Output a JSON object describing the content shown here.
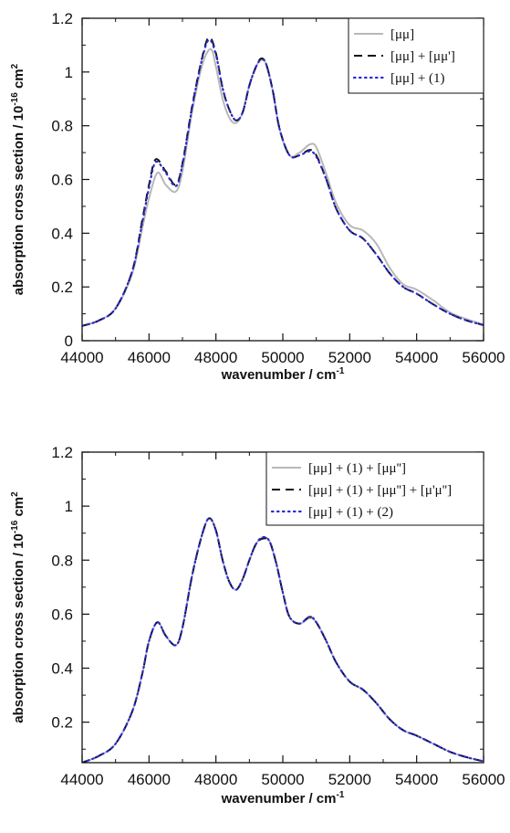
{
  "chart_data": [
    {
      "type": "line",
      "xlabel": "wavenumber / cm",
      "xlabel_sup": "-1",
      "ylabel_main": "absorption cross section / 10",
      "ylabel_sup": "-16",
      "ylabel_unit": " cm",
      "ylabel_unit_sup": "2",
      "xlim": [
        44000,
        56000
      ],
      "ylim": [
        0,
        1.2
      ],
      "xticks": [
        44000,
        46000,
        48000,
        50000,
        52000,
        54000,
        56000
      ],
      "xtick_labels": [
        "44000",
        "46000",
        "48000",
        "50000",
        "52000",
        "54000",
        "56000"
      ],
      "yticks": [
        0,
        0.2,
        0.4,
        0.6,
        0.8,
        1,
        1.2
      ],
      "ytick_labels": [
        "0",
        "0.2",
        "0.4",
        "0.6",
        "0.8",
        "1",
        "1.2"
      ],
      "grid": false,
      "legend_position": "top-right",
      "series": [
        {
          "name": "[μμ]",
          "style": "solid",
          "color": "#b8b8b8",
          "x": [
            44000,
            44500,
            45000,
            45500,
            45800,
            46000,
            46250,
            46500,
            46800,
            47000,
            47300,
            47600,
            47850,
            48000,
            48200,
            48400,
            48600,
            48800,
            49000,
            49200,
            49350,
            49500,
            49700,
            49900,
            50200,
            50500,
            50800,
            51000,
            51300,
            51600,
            52000,
            52400,
            52800,
            53200,
            53600,
            54000,
            54500,
            55000,
            55500,
            56000
          ],
          "y": [
            0.055,
            0.075,
            0.12,
            0.25,
            0.42,
            0.53,
            0.625,
            0.58,
            0.555,
            0.63,
            0.86,
            1.03,
            1.085,
            1.02,
            0.9,
            0.83,
            0.81,
            0.85,
            0.95,
            1.02,
            1.045,
            1.03,
            0.93,
            0.79,
            0.69,
            0.7,
            0.73,
            0.72,
            0.62,
            0.51,
            0.43,
            0.41,
            0.36,
            0.27,
            0.21,
            0.19,
            0.15,
            0.105,
            0.08,
            0.06
          ]
        },
        {
          "name": "[μμ] + [μμ']",
          "style": "dashed",
          "color": "#111111",
          "x": [
            44000,
            44500,
            45000,
            45500,
            45800,
            46000,
            46200,
            46500,
            46800,
            47000,
            47300,
            47600,
            47800,
            48000,
            48200,
            48400,
            48600,
            48800,
            49000,
            49200,
            49350,
            49500,
            49700,
            49900,
            50200,
            50500,
            50800,
            51000,
            51300,
            51600,
            52000,
            52400,
            52800,
            53200,
            53600,
            54000,
            54500,
            55000,
            55500,
            56000
          ],
          "y": [
            0.055,
            0.075,
            0.12,
            0.26,
            0.45,
            0.58,
            0.675,
            0.63,
            0.58,
            0.66,
            0.88,
            1.06,
            1.13,
            1.07,
            0.94,
            0.86,
            0.82,
            0.85,
            0.95,
            1.02,
            1.05,
            1.03,
            0.93,
            0.79,
            0.69,
            0.69,
            0.71,
            0.69,
            0.6,
            0.49,
            0.41,
            0.38,
            0.32,
            0.25,
            0.2,
            0.175,
            0.135,
            0.1,
            0.075,
            0.058
          ]
        },
        {
          "name": "[μμ] + (1)",
          "style": "dotted",
          "color": "#2b2bd6",
          "x": [
            44000,
            44500,
            45000,
            45500,
            45800,
            46000,
            46200,
            46500,
            46800,
            47000,
            47300,
            47600,
            47800,
            48000,
            48200,
            48400,
            48600,
            48800,
            49000,
            49200,
            49350,
            49500,
            49700,
            49900,
            50200,
            50500,
            50800,
            51000,
            51300,
            51600,
            52000,
            52400,
            52800,
            53200,
            53600,
            54000,
            54500,
            55000,
            55500,
            56000
          ],
          "y": [
            0.055,
            0.075,
            0.12,
            0.26,
            0.44,
            0.57,
            0.665,
            0.625,
            0.575,
            0.655,
            0.875,
            1.055,
            1.12,
            1.065,
            0.94,
            0.86,
            0.82,
            0.85,
            0.95,
            1.02,
            1.045,
            1.03,
            0.93,
            0.79,
            0.69,
            0.69,
            0.705,
            0.685,
            0.6,
            0.49,
            0.41,
            0.38,
            0.32,
            0.25,
            0.2,
            0.175,
            0.135,
            0.1,
            0.075,
            0.058
          ]
        }
      ]
    },
    {
      "type": "line",
      "xlabel": "wavenumber / cm",
      "xlabel_sup": "-1",
      "ylabel_main": "absorption cross section / 10",
      "ylabel_sup": "-16",
      "ylabel_unit": " cm",
      "ylabel_unit_sup": "2",
      "xlim": [
        44000,
        56000
      ],
      "ylim": [
        0.05,
        1.2
      ],
      "xticks": [
        44000,
        46000,
        48000,
        50000,
        52000,
        54000,
        56000
      ],
      "xtick_labels": [
        "44000",
        "46000",
        "48000",
        "50000",
        "52000",
        "54000",
        "56000"
      ],
      "yticks": [
        0.2,
        0.4,
        0.6,
        0.8,
        1,
        1.2
      ],
      "ytick_labels": [
        "0.2",
        "0.4",
        "0.6",
        "0.8",
        "1",
        "1.2"
      ],
      "grid": false,
      "legend_position": "top-right",
      "series": [
        {
          "name": "[μμ] + (1) + [μμ'']",
          "style": "solid",
          "color": "#b8b8b8",
          "x": [
            44000,
            44500,
            45000,
            45500,
            45800,
            46000,
            46250,
            46500,
            46800,
            47000,
            47300,
            47600,
            47800,
            48000,
            48200,
            48400,
            48600,
            48800,
            49000,
            49200,
            49400,
            49600,
            49800,
            50000,
            50200,
            50500,
            50800,
            51000,
            51300,
            51600,
            52000,
            52400,
            52800,
            53200,
            53600,
            54000,
            54500,
            55000,
            55500,
            56000
          ],
          "y": [
            0.05,
            0.075,
            0.12,
            0.24,
            0.38,
            0.5,
            0.57,
            0.52,
            0.485,
            0.55,
            0.75,
            0.9,
            0.955,
            0.91,
            0.8,
            0.72,
            0.69,
            0.73,
            0.8,
            0.86,
            0.885,
            0.87,
            0.79,
            0.68,
            0.59,
            0.565,
            0.585,
            0.57,
            0.5,
            0.42,
            0.35,
            0.32,
            0.27,
            0.21,
            0.17,
            0.15,
            0.12,
            0.09,
            0.07,
            0.055
          ]
        },
        {
          "name": "[μμ] + (1) + [μμ''] + [μ'μ'']",
          "style": "dashed",
          "color": "#111111",
          "x": [
            44000,
            44500,
            45000,
            45500,
            45800,
            46000,
            46250,
            46500,
            46800,
            47000,
            47300,
            47600,
            47800,
            48000,
            48200,
            48400,
            48600,
            48800,
            49000,
            49200,
            49400,
            49600,
            49800,
            50000,
            50200,
            50500,
            50800,
            51000,
            51300,
            51600,
            52000,
            52400,
            52800,
            53200,
            53600,
            54000,
            54500,
            55000,
            55500,
            56000
          ],
          "y": [
            0.05,
            0.075,
            0.12,
            0.24,
            0.38,
            0.5,
            0.57,
            0.52,
            0.485,
            0.55,
            0.75,
            0.9,
            0.955,
            0.91,
            0.8,
            0.72,
            0.69,
            0.73,
            0.8,
            0.86,
            0.88,
            0.87,
            0.79,
            0.68,
            0.59,
            0.565,
            0.59,
            0.57,
            0.5,
            0.42,
            0.35,
            0.32,
            0.27,
            0.21,
            0.17,
            0.15,
            0.12,
            0.09,
            0.07,
            0.055
          ]
        },
        {
          "name": "[μμ] + (1) + (2)",
          "style": "dotted",
          "color": "#2b2bd6",
          "x": [
            44000,
            44500,
            45000,
            45500,
            45800,
            46000,
            46250,
            46500,
            46800,
            47000,
            47300,
            47600,
            47800,
            48000,
            48200,
            48400,
            48600,
            48800,
            49000,
            49200,
            49400,
            49600,
            49800,
            50000,
            50200,
            50500,
            50800,
            51000,
            51300,
            51600,
            52000,
            52400,
            52800,
            53200,
            53600,
            54000,
            54500,
            55000,
            55500,
            56000
          ],
          "y": [
            0.05,
            0.075,
            0.12,
            0.24,
            0.38,
            0.5,
            0.57,
            0.52,
            0.485,
            0.55,
            0.75,
            0.9,
            0.955,
            0.91,
            0.8,
            0.72,
            0.69,
            0.73,
            0.8,
            0.86,
            0.885,
            0.87,
            0.79,
            0.68,
            0.59,
            0.565,
            0.59,
            0.57,
            0.5,
            0.42,
            0.35,
            0.32,
            0.27,
            0.21,
            0.17,
            0.15,
            0.12,
            0.09,
            0.07,
            0.055
          ]
        }
      ]
    }
  ]
}
